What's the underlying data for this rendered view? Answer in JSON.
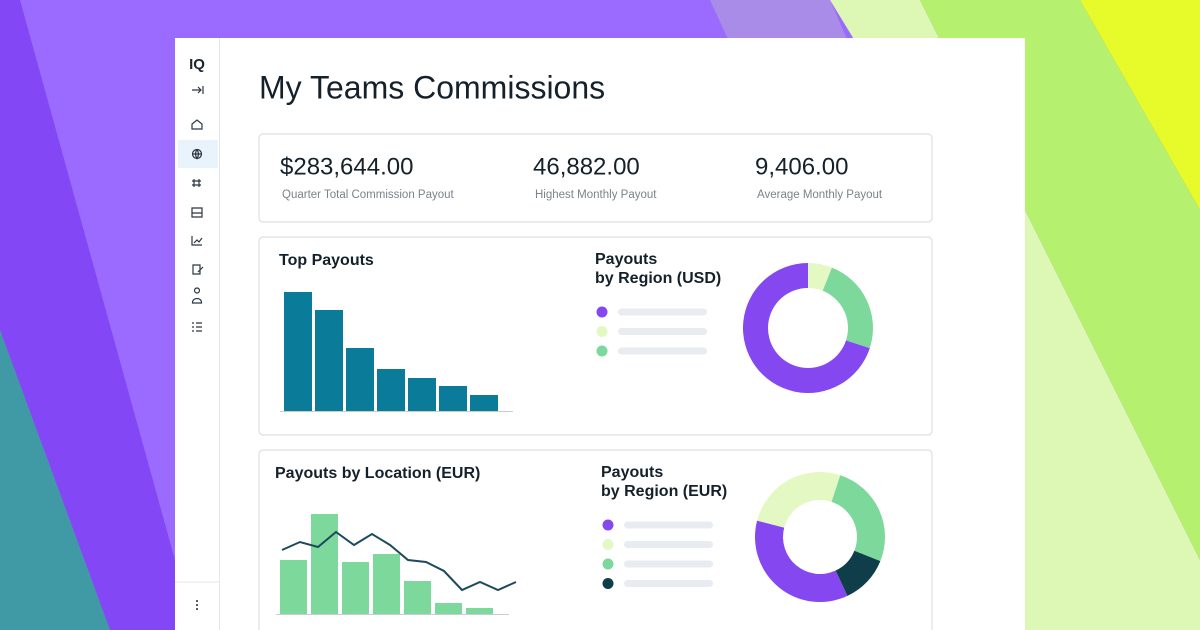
{
  "sidebar": {
    "logo": "IQ"
  },
  "header": {
    "title": "My Teams Commissions"
  },
  "kpis": [
    {
      "value": "$283,644.00",
      "label": "Quarter Total Commission Payout"
    },
    {
      "value": "46,882.00",
      "label": "Highest Monthly Payout"
    },
    {
      "value": "9,406.00",
      "label": "Average Monthly Payout"
    }
  ],
  "charts": [
    {
      "type": "bar",
      "title": "Top Payouts",
      "values": [
        119,
        101,
        63,
        42,
        33,
        25,
        16
      ],
      "color": "#0a7b98"
    },
    {
      "type": "pie",
      "title_lines": [
        "Payouts",
        "by Region (USD)"
      ],
      "values": [
        70,
        6,
        24
      ],
      "colors": [
        "#8447f0",
        "#e3f8c2",
        "#7dd89c"
      ]
    },
    {
      "type": "combo",
      "title": "Payouts by Location (EUR)",
      "series": [
        {
          "type": "bar",
          "color": "#7dd89c",
          "values": [
            54,
            100,
            52,
            60,
            33,
            11,
            6
          ]
        },
        {
          "type": "line",
          "color": "#1d4a5c",
          "values": [
            64,
            72,
            67,
            82,
            69,
            80,
            69,
            54,
            52,
            43,
            24,
            32,
            24,
            32
          ]
        }
      ]
    },
    {
      "type": "pie",
      "title_lines": [
        "Payouts",
        "by Region (EUR)"
      ],
      "values": [
        36,
        26,
        26,
        12
      ],
      "colors": [
        "#8447f0",
        "#e3f8c2",
        "#7dd89c",
        "#0f3d4a"
      ]
    }
  ]
}
